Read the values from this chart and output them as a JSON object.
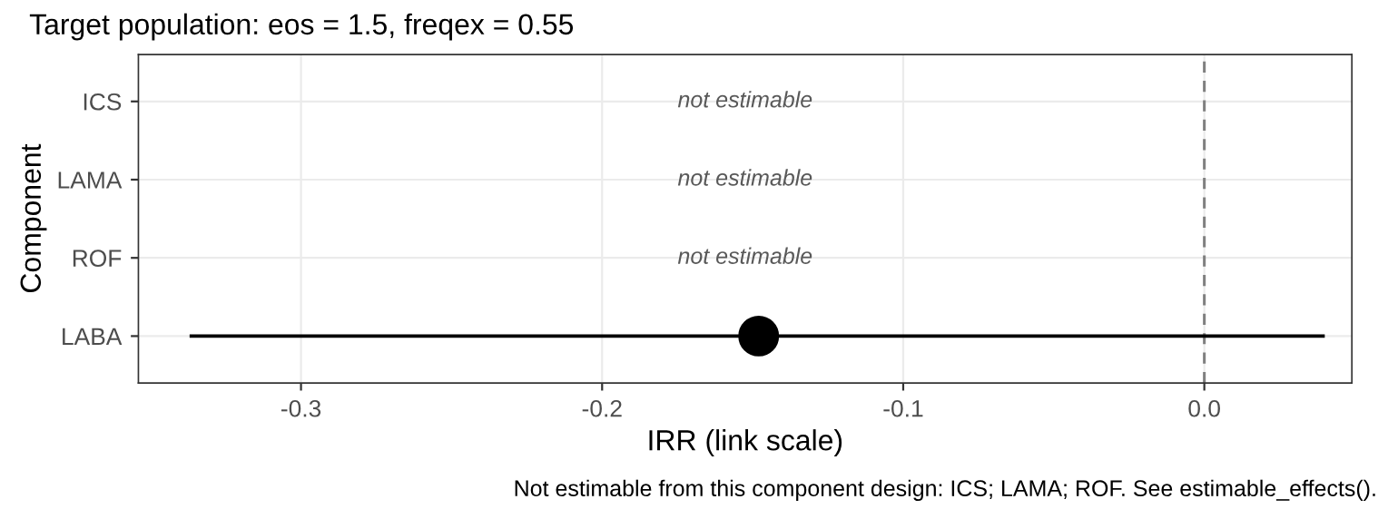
{
  "chart_data": {
    "type": "scatter",
    "orientation": "horizontal",
    "title": "Target population: eos = 1.5, freqex = 0.55",
    "xlabel": "IRR (link scale)",
    "ylabel": "Component",
    "categories": [
      "ICS",
      "LAMA",
      "ROF",
      "LABA"
    ],
    "values": [
      null,
      null,
      null,
      -0.148
    ],
    "errors": [
      null,
      null,
      null,
      [
        -0.337,
        0.04
      ]
    ],
    "color": "#000000",
    "marker": "circle",
    "xlim": [
      -0.354,
      0.049
    ],
    "xticks": [
      -0.3,
      -0.2,
      -0.1,
      {
        "value": 0.0,
        "label": "0.0"
      }
    ],
    "ref_lines": [
      {
        "axis": "x",
        "value": 0.0,
        "color": "#808080",
        "line_style": "dashed"
      }
    ],
    "grid": true,
    "annotations": [
      "not estimable",
      "not estimable",
      "not estimable",
      "Not estimable from this component design: ICS; LAMA; ROF. See estimable_effects()."
    ]
  }
}
